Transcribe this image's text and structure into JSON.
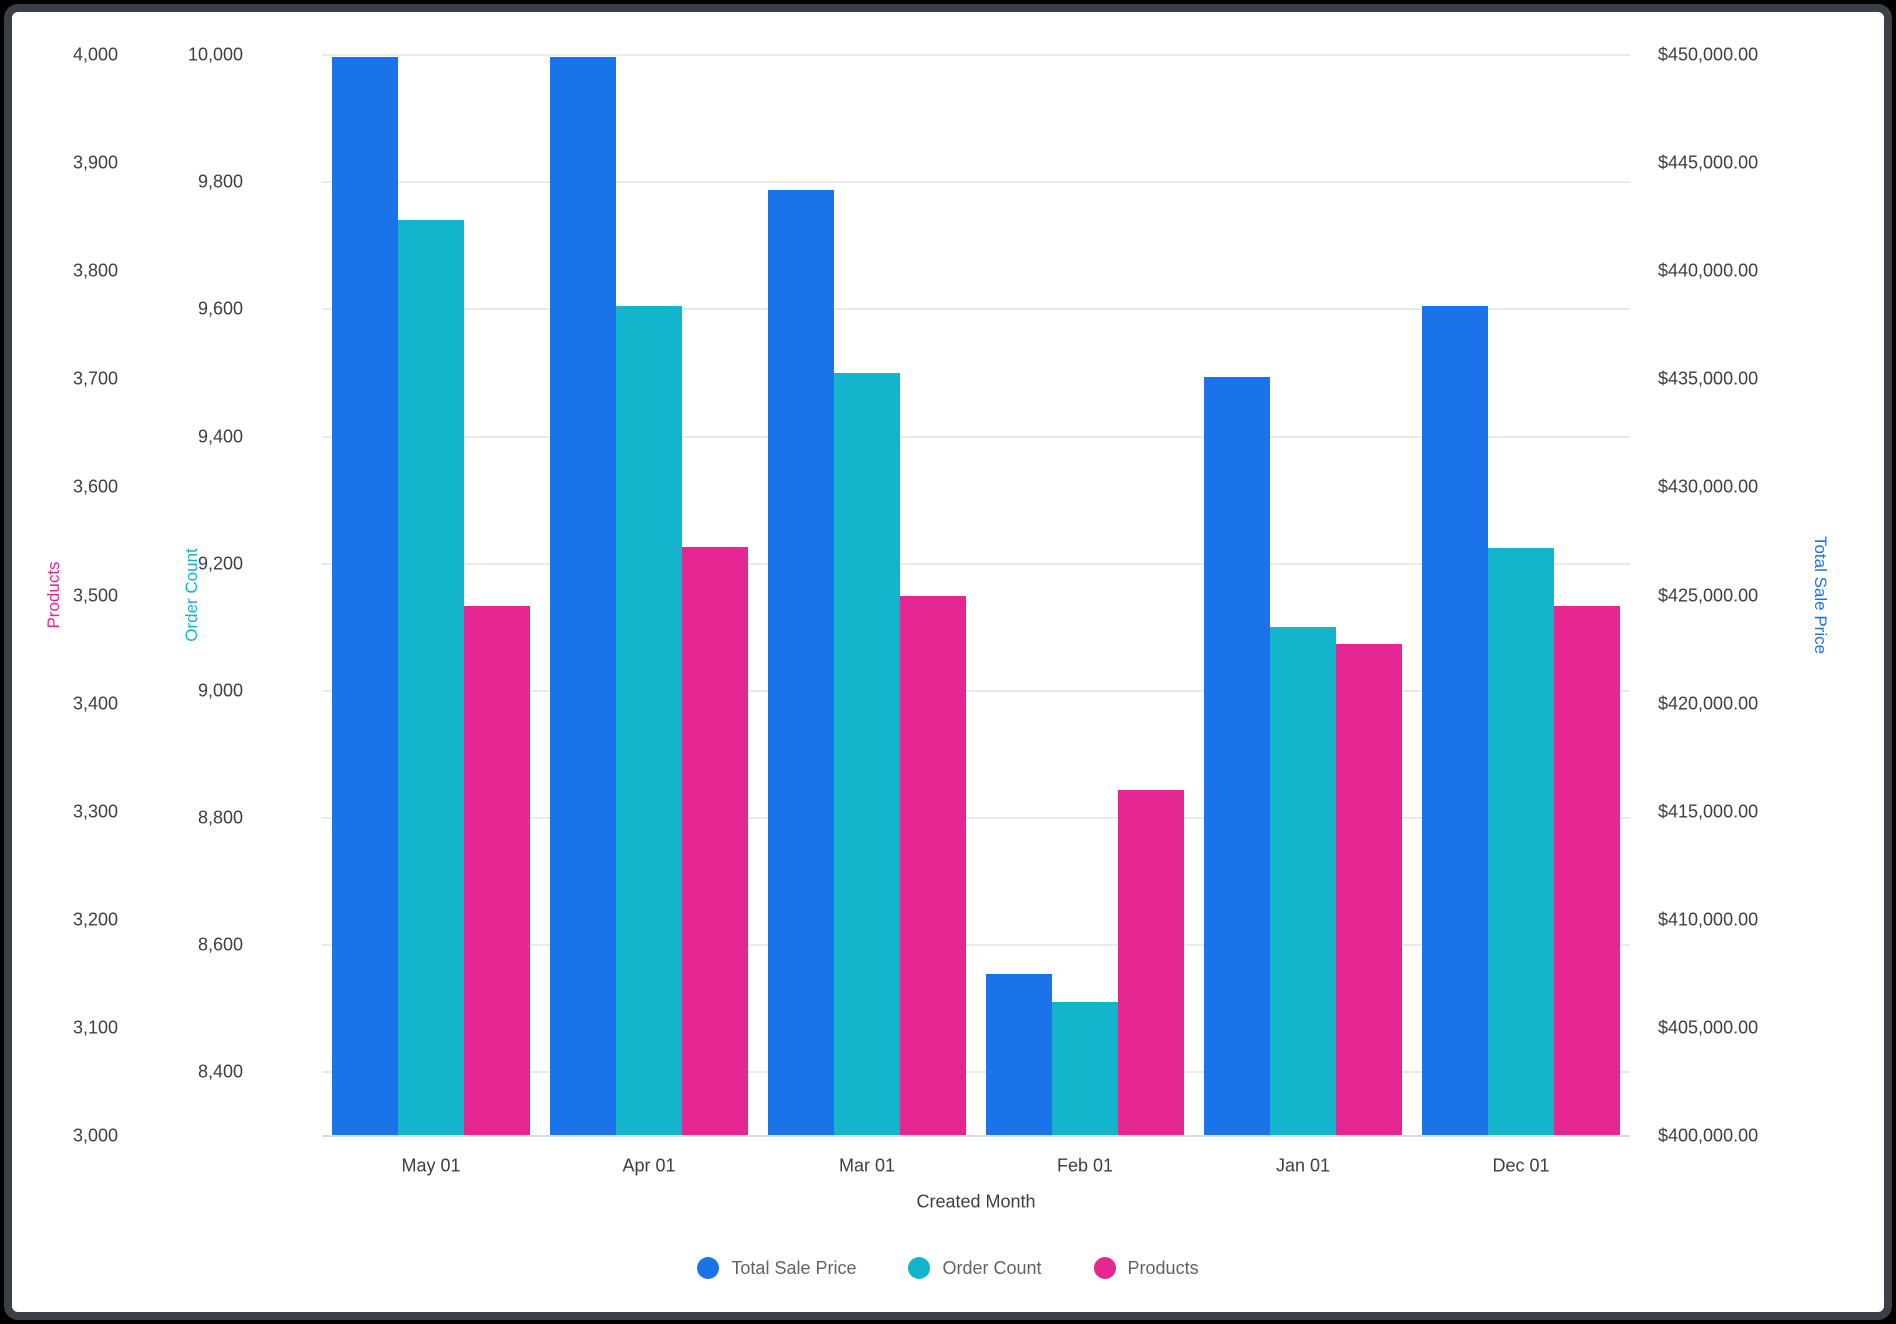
{
  "chart_data": {
    "type": "bar",
    "title": "",
    "xlabel": "Created Month",
    "categories": [
      "May 01",
      "Apr 01",
      "Mar 01",
      "Feb 01",
      "Jan 01",
      "Dec 01"
    ],
    "series": [
      {
        "name": "Total Sale Price",
        "axis": "price",
        "color": "#1A73E8",
        "values": [
          449900,
          449900,
          443750,
          407500,
          435100,
          438400
        ]
      },
      {
        "name": "Order Count",
        "axis": "orders",
        "color": "#12B5CB",
        "values": [
          9740,
          9605,
          9500,
          8510,
          9100,
          9225
        ]
      },
      {
        "name": "Products",
        "axis": "products",
        "color": "#E52592",
        "values": [
          3490,
          3545,
          3500,
          3320,
          3455,
          3490
        ]
      }
    ],
    "axes": {
      "products": {
        "title": "Products",
        "color": "#E52592",
        "side": "outer-left",
        "min": 3000,
        "max": 4000,
        "tick_values": [
          4000,
          3900,
          3800,
          3700,
          3600,
          3500,
          3400,
          3300,
          3200,
          3100,
          3000
        ],
        "tick_labels": [
          "4,000",
          "3,900",
          "3,800",
          "3,700",
          "3,600",
          "3,500",
          "3,400",
          "3,300",
          "3,200",
          "3,100",
          "3,000"
        ]
      },
      "orders": {
        "title": "Order Count",
        "color": "#12B5CB",
        "side": "inner-left",
        "min": 8300,
        "max": 10000,
        "tick_values": [
          10000,
          9800,
          9600,
          9400,
          9200,
          9000,
          8800,
          8600,
          8400
        ],
        "tick_labels": [
          "10,000",
          "9,800",
          "9,600",
          "9,400",
          "9,200",
          "9,000",
          "8,800",
          "8,600",
          "8,400"
        ]
      },
      "price": {
        "title": "Total Sale Price",
        "color": "#1A73E8",
        "side": "right",
        "min": 400000,
        "max": 450000,
        "tick_values": [
          450000,
          445000,
          440000,
          435000,
          430000,
          425000,
          420000,
          415000,
          410000,
          405000,
          400000
        ],
        "tick_labels": [
          "$450,000.00",
          "$445,000.00",
          "$440,000.00",
          "$435,000.00",
          "$430,000.00",
          "$425,000.00",
          "$420,000.00",
          "$415,000.00",
          "$410,000.00",
          "$405,000.00",
          "$400,000.00"
        ]
      }
    },
    "grid": "horizontal-at-order-count-ticks",
    "legend_position": "bottom",
    "legend": [
      {
        "label": "Total Sale Price",
        "color": "#1A73E8"
      },
      {
        "label": "Order Count",
        "color": "#12B5CB"
      },
      {
        "label": "Products",
        "color": "#E52592"
      }
    ]
  },
  "colors": {
    "tick_text": "#3C4043",
    "legend_text": "#5F6368",
    "gridline": "#E9E9E9",
    "baseline": "#D5DBEA",
    "frame_border": "#3A4045",
    "outer_background": "#000000",
    "card_background": "#FFFFFF"
  }
}
